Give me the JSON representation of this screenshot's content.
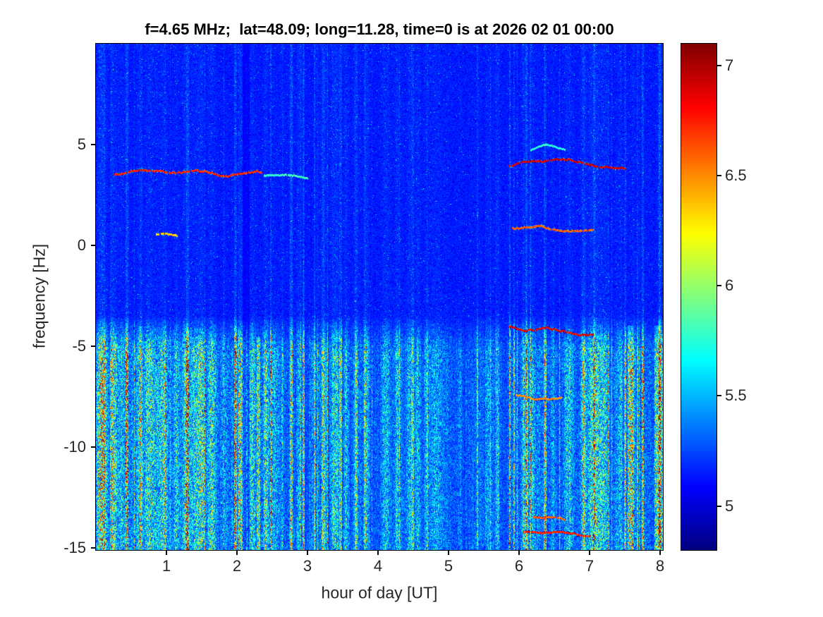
{
  "chart_data": {
    "type": "heatmap",
    "title": "f=4.65 MHz;  lat=48.09; long=11.28, time=0 is at 2026 02 01 00:00",
    "xlabel": "hour of day [UT]",
    "ylabel": "frequency [Hz]",
    "xlim": [
      0,
      8.04
    ],
    "ylim": [
      -15.1,
      10.0
    ],
    "xticks": [
      1,
      2,
      3,
      4,
      5,
      6,
      7,
      8
    ],
    "yticks": [
      5,
      0,
      -5,
      -10,
      -15
    ],
    "colormap": "jet",
    "colorbar": {
      "range": [
        4.8,
        7.1
      ],
      "ticks": [
        7,
        6.5,
        6,
        5.5,
        5
      ]
    },
    "noise": {
      "base": 5.04,
      "base_jitter": 0.16,
      "col_jitter": 0.1,
      "dark_prob": 0.08,
      "dark_step": 0.12,
      "upper_speckle_prob": 0.012,
      "lower_band_start": -3.5,
      "lower_band_full": -5.2,
      "low_t_boundaries": [
        2.6,
        5.85
      ],
      "low_amps": [
        1.25,
        0.8,
        1.0
      ],
      "lower_gain": [
        0.06,
        0.78
      ]
    },
    "features": [
      {
        "name": "emission-3.6Hz",
        "path": [
          [
            0.25,
            3.62
          ],
          [
            0.9,
            3.72
          ],
          [
            1.5,
            3.6
          ],
          [
            2.35,
            3.55
          ]
        ],
        "value": 6.75,
        "thickness": 1,
        "wiggle": 0.09
      },
      {
        "name": "emission-3.5Hz-faint-tail",
        "path": [
          [
            2.38,
            3.5
          ],
          [
            3.0,
            3.4
          ]
        ],
        "value": 5.8,
        "thickness": 1,
        "wiggle": 0.05
      },
      {
        "name": "emission-0.5Hz-short",
        "path": [
          [
            0.85,
            0.55
          ],
          [
            1.15,
            0.5
          ]
        ],
        "value": 6.35,
        "thickness": 1,
        "wiggle": 0.05
      },
      {
        "name": "emission-4Hz-arc",
        "path": [
          [
            5.85,
            3.9
          ],
          [
            6.2,
            4.25
          ],
          [
            6.5,
            4.3
          ],
          [
            6.85,
            4.1
          ],
          [
            7.15,
            3.95
          ],
          [
            7.5,
            3.8
          ]
        ],
        "value": 6.9,
        "thickness": 1,
        "wiggle": 0.08
      },
      {
        "name": "emission-4.8Hz-faint-arc",
        "path": [
          [
            6.15,
            4.7
          ],
          [
            6.4,
            4.95
          ],
          [
            6.65,
            4.8
          ]
        ],
        "value": 5.75,
        "thickness": 1,
        "wiggle": 0.05
      },
      {
        "name": "emission-0.8Hz",
        "path": [
          [
            5.9,
            0.95
          ],
          [
            6.3,
            0.9
          ],
          [
            6.45,
            0.78
          ],
          [
            7.05,
            0.72
          ]
        ],
        "value": 6.6,
        "thickness": 1,
        "wiggle": 0.07
      },
      {
        "name": "emission-neg4.1Hz",
        "path": [
          [
            5.85,
            -4.0
          ],
          [
            6.2,
            -4.15
          ],
          [
            6.5,
            -4.2
          ],
          [
            7.05,
            -4.4
          ]
        ],
        "value": 6.85,
        "thickness": 1,
        "wiggle": 0.1
      },
      {
        "name": "emission-neg7.5Hz",
        "path": [
          [
            5.95,
            -7.45
          ],
          [
            6.6,
            -7.6
          ]
        ],
        "value": 6.5,
        "thickness": 1,
        "wiggle": 0.07
      },
      {
        "name": "emission-neg13.5Hz",
        "path": [
          [
            6.2,
            -13.45
          ],
          [
            6.65,
            -13.6
          ]
        ],
        "value": 6.6,
        "thickness": 1,
        "wiggle": 0.07
      },
      {
        "name": "emission-neg14.2Hz",
        "path": [
          [
            6.05,
            -14.15
          ],
          [
            7.0,
            -14.35
          ]
        ],
        "value": 6.75,
        "thickness": 1,
        "wiggle": 0.07
      }
    ],
    "dark_stripes": [
      {
        "t": 2.13,
        "width": 0.1,
        "strength": 0.55
      },
      {
        "t": 3.06,
        "width": 0.05,
        "strength": 0.3
      },
      {
        "t": 5.5,
        "width": 0.04,
        "strength": 0.2
      }
    ],
    "bright_streaks": [
      {
        "t": 0.07,
        "width": 0.12,
        "fmin": -15.1,
        "fmax": 10.0,
        "boost": 0.55
      },
      {
        "t": 2.3,
        "width": 0.05,
        "fmin": -15.1,
        "fmax": -4.5,
        "boost": 0.8
      },
      {
        "t": 7.58,
        "width": 0.08,
        "fmin": -15.1,
        "fmax": -4.0,
        "boost": 1.4
      },
      {
        "t": 7.97,
        "width": 0.1,
        "fmin": -15.1,
        "fmax": -4.0,
        "boost": 0.9
      }
    ]
  }
}
